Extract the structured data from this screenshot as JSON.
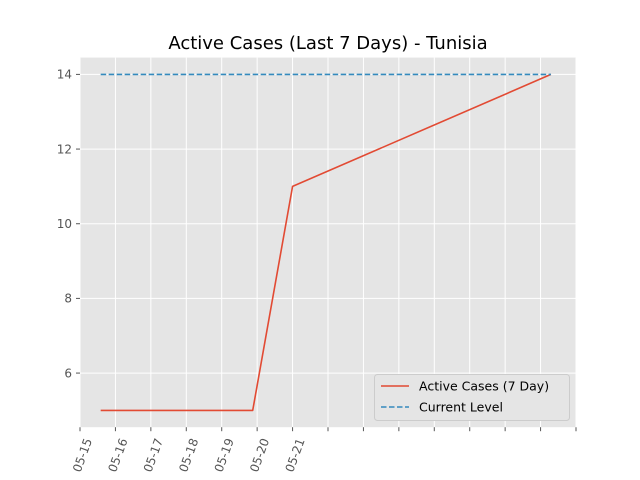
{
  "chart_data": {
    "type": "line",
    "title": "Active Cases (Last 7 Days) - Tunisia",
    "xlabel": "",
    "ylabel": "",
    "x_axis_start": "05-15",
    "x_tick_labels": [
      "05-15",
      "05-16",
      "05-17",
      "05-18",
      "05-19",
      "05-20",
      "05-21",
      "",
      "",
      "",
      "",
      "",
      "",
      "",
      ""
    ],
    "y_ticks": [
      6,
      8,
      10,
      12,
      14
    ],
    "x_range_days": [
      0.0,
      14.0
    ],
    "ylim": [
      4.55,
      14.45
    ],
    "grid": true,
    "legend_position": "lower-right",
    "series": [
      {
        "name": "Active Cases (7 Day)",
        "style": "solid",
        "color": "#E24A33",
        "x": [
          "05-15 14:00",
          "05-19 21:00",
          "05-21",
          "05-28 07:00"
        ],
        "y": [
          5,
          5,
          11,
          14
        ]
      },
      {
        "name": "Current Level",
        "style": "dashed",
        "color": "#348ABD",
        "x": [
          "05-15 14:00",
          "05-28 07:00"
        ],
        "y": [
          14,
          14
        ]
      }
    ]
  }
}
